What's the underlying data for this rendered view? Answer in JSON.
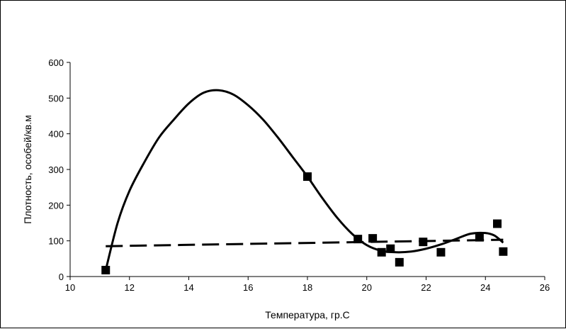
{
  "chart_data": {
    "type": "scatter",
    "title": "",
    "xlabel": "Температура, гр.С",
    "ylabel": "Плотность, особей/кв.м",
    "xlim": [
      10,
      26
    ],
    "ylim": [
      0,
      600
    ],
    "xticks": [
      10,
      12,
      14,
      16,
      18,
      20,
      22,
      24,
      26
    ],
    "yticks": [
      0,
      100,
      200,
      300,
      400,
      500,
      600
    ],
    "grid": false,
    "legend": "none",
    "series": [
      {
        "type": "scatter",
        "marker": "square",
        "color": "#000000",
        "points": [
          {
            "x": 11.2,
            "y": 18
          },
          {
            "x": 18.0,
            "y": 280
          },
          {
            "x": 19.7,
            "y": 105
          },
          {
            "x": 20.2,
            "y": 107
          },
          {
            "x": 20.5,
            "y": 68
          },
          {
            "x": 20.8,
            "y": 78
          },
          {
            "x": 21.1,
            "y": 40
          },
          {
            "x": 21.9,
            "y": 97
          },
          {
            "x": 22.5,
            "y": 68
          },
          {
            "x": 23.8,
            "y": 110
          },
          {
            "x": 24.4,
            "y": 148
          },
          {
            "x": 24.6,
            "y": 70
          }
        ]
      },
      {
        "type": "line",
        "style": "solid",
        "color": "#000000",
        "points": [
          {
            "x": 11.2,
            "y": 18
          },
          {
            "x": 11.6,
            "y": 150
          },
          {
            "x": 12.0,
            "y": 240
          },
          {
            "x": 12.5,
            "y": 320
          },
          {
            "x": 13.0,
            "y": 390
          },
          {
            "x": 13.5,
            "y": 440
          },
          {
            "x": 14.0,
            "y": 485
          },
          {
            "x": 14.5,
            "y": 515
          },
          {
            "x": 15.0,
            "y": 522
          },
          {
            "x": 15.5,
            "y": 510
          },
          {
            "x": 16.0,
            "y": 480
          },
          {
            "x": 16.5,
            "y": 440
          },
          {
            "x": 17.0,
            "y": 390
          },
          {
            "x": 17.5,
            "y": 335
          },
          {
            "x": 18.0,
            "y": 280
          },
          {
            "x": 18.5,
            "y": 220
          },
          {
            "x": 19.0,
            "y": 165
          },
          {
            "x": 19.5,
            "y": 120
          },
          {
            "x": 20.0,
            "y": 88
          },
          {
            "x": 20.5,
            "y": 72
          },
          {
            "x": 21.0,
            "y": 68
          },
          {
            "x": 21.5,
            "y": 70
          },
          {
            "x": 22.0,
            "y": 78
          },
          {
            "x": 22.5,
            "y": 90
          },
          {
            "x": 23.0,
            "y": 105
          },
          {
            "x": 23.5,
            "y": 120
          },
          {
            "x": 24.0,
            "y": 122
          },
          {
            "x": 24.3,
            "y": 115
          },
          {
            "x": 24.6,
            "y": 95
          }
        ]
      },
      {
        "type": "line",
        "style": "dashed",
        "color": "#000000",
        "points": [
          {
            "x": 11.2,
            "y": 85
          },
          {
            "x": 24.6,
            "y": 103
          }
        ]
      }
    ]
  }
}
